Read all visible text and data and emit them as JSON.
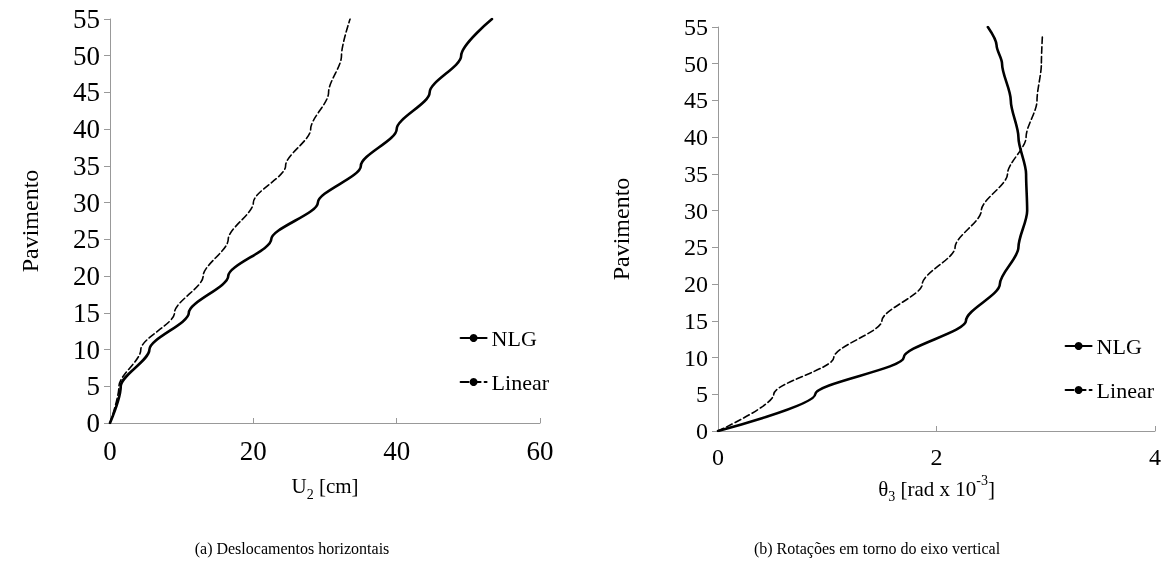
{
  "chart_data": [
    {
      "type": "line",
      "xlabel": "U$_{2}$ [cm]",
      "ylabel": "Pavimento",
      "xlim": [
        0,
        60
      ],
      "xticks": [
        0,
        20,
        40,
        60
      ],
      "ylim": [
        0,
        55
      ],
      "yticks": [
        0,
        5,
        10,
        15,
        20,
        25,
        30,
        35,
        40,
        45,
        50,
        55
      ],
      "legend": "bottom right",
      "marker": "none",
      "annotations": [
        "(a) Deslocamentos horizontais"
      ],
      "series": [
        {
          "name": "NLG",
          "color": "#000000",
          "line_style": "solid",
          "x": [
            0,
            1.5,
            5.5,
            11,
            16.5,
            22.5,
            29,
            35,
            40,
            44.6,
            49,
            53.3
          ],
          "values": [
            0,
            5,
            10,
            15,
            20,
            25,
            30,
            35,
            40,
            45,
            50,
            55
          ]
        },
        {
          "name": "Linear",
          "color": "#000000",
          "line_style": "dashed",
          "x": [
            0,
            1.25,
            4.3,
            9,
            13,
            16.5,
            20,
            24.5,
            28,
            30.5,
            32.3,
            33.5
          ],
          "values": [
            0,
            5,
            10,
            15,
            20,
            25,
            30,
            35,
            40,
            45,
            50,
            55
          ]
        }
      ]
    },
    {
      "type": "line",
      "xlabel": "θ$_{3}$ [rad x 10$^{-3}$]",
      "ylabel": "Pavimento",
      "xlim": [
        0,
        4
      ],
      "xticks": [
        0,
        2,
        4
      ],
      "ylim": [
        0,
        55
      ],
      "yticks": [
        0,
        5,
        10,
        15,
        20,
        25,
        30,
        35,
        40,
        45,
        50,
        55
      ],
      "legend": "bottom right",
      "marker": "none",
      "annotations": [
        "(b) Rotações em torno do eixo vertical"
      ],
      "series": [
        {
          "name": "NLG",
          "color": "#000000",
          "line_style": "solid",
          "x": [
            0,
            0.89,
            1.7,
            2.27,
            2.58,
            2.75,
            2.83,
            2.82,
            2.75,
            2.68,
            2.6,
            2.55,
            2.47
          ],
          "values": [
            0,
            5,
            10,
            15,
            20,
            25,
            30,
            35,
            40,
            45,
            50,
            52.5,
            55
          ]
        },
        {
          "name": "Linear",
          "color": "#000000",
          "line_style": "dashed",
          "x": [
            0,
            0.51,
            1.06,
            1.5,
            1.87,
            2.17,
            2.41,
            2.65,
            2.82,
            2.92,
            2.96,
            2.97
          ],
          "values": [
            0,
            5,
            10,
            15,
            20,
            25,
            30,
            35,
            40,
            45,
            50,
            54
          ]
        }
      ]
    }
  ]
}
